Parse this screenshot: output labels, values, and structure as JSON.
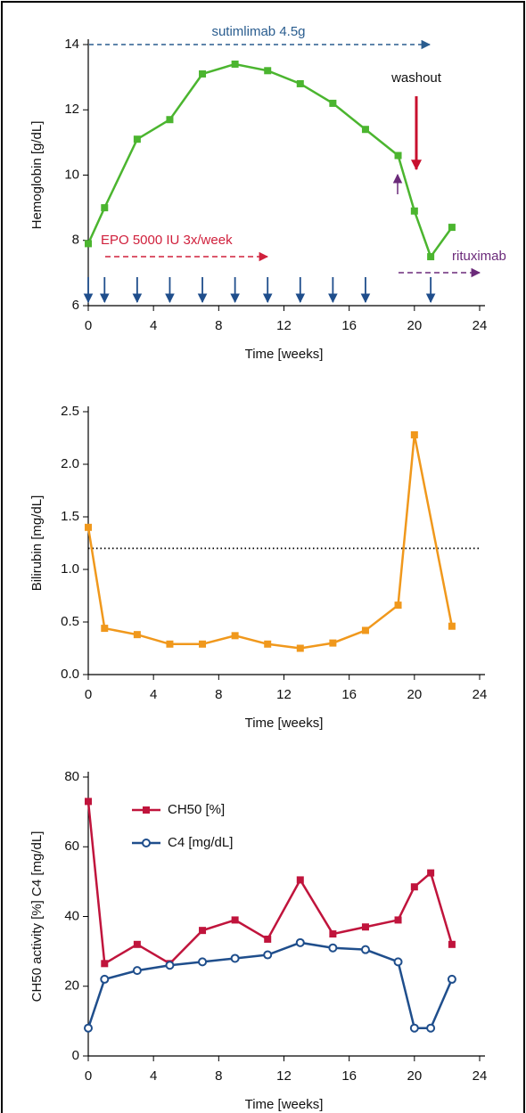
{
  "chart_data": [
    {
      "type": "line",
      "y_label": "Hemoglobin [g/dL]",
      "x_label": "Time [weeks]",
      "x": [
        0,
        1,
        3,
        5,
        7,
        9,
        11,
        13,
        15,
        17,
        19,
        20,
        21,
        22.3
      ],
      "series": [
        {
          "name": "Hemoglobin",
          "color": "#4bb52f",
          "marker": "square",
          "values": [
            7.9,
            9.0,
            11.1,
            11.7,
            13.1,
            13.4,
            13.2,
            12.8,
            12.2,
            11.4,
            10.6,
            8.9,
            7.5,
            8.4
          ]
        }
      ],
      "xlim": [
        0,
        24
      ],
      "xticks": [
        0,
        4,
        8,
        12,
        16,
        20,
        24
      ],
      "ylim": [
        6,
        14
      ],
      "yticks": [
        6,
        8,
        10,
        12,
        14
      ],
      "annotations": [
        "sutimlimab 4.5g",
        "washout",
        "EPO 5000 IU 3x/week",
        "rituximab"
      ],
      "dose_weeks": [
        0,
        1,
        3,
        5,
        7,
        9,
        11,
        13,
        15,
        17,
        21
      ]
    },
    {
      "type": "line",
      "y_label": "Bilirubin [mg/dL]",
      "x_label": "Time [weeks]",
      "x": [
        0,
        1,
        3,
        5,
        7,
        9,
        11,
        13,
        15,
        17,
        19,
        20,
        22.3
      ],
      "series": [
        {
          "name": "Bilirubin",
          "color": "#f0981c",
          "marker": "square",
          "values": [
            1.4,
            0.44,
            0.38,
            0.29,
            0.29,
            0.37,
            0.29,
            0.25,
            0.3,
            0.42,
            0.66,
            2.28,
            0.46
          ]
        }
      ],
      "xlim": [
        0,
        24
      ],
      "xticks": [
        0,
        4,
        8,
        12,
        16,
        20,
        24
      ],
      "ylim": [
        0,
        2.5
      ],
      "yticks": [
        {
          "value": 0,
          "label": "0.0"
        },
        0.5,
        {
          "value": 1,
          "label": "1.0"
        },
        1.5,
        {
          "value": 2,
          "label": "2.0"
        },
        2.5
      ],
      "hline": 1.2
    },
    {
      "type": "line",
      "y_label": "CH50 activity [%] C4 [mg/dL]",
      "x_label": "Time [weeks]",
      "x": [
        0,
        1,
        3,
        5,
        7,
        9,
        11,
        13,
        15,
        17,
        19,
        20,
        21,
        22.3
      ],
      "series": [
        {
          "name": "CH50 [%]",
          "color": "#c0143c",
          "marker": "square",
          "values": [
            73,
            26.5,
            32,
            26.5,
            36,
            39,
            33.5,
            50.5,
            35,
            37,
            39,
            48.5,
            52.5,
            32
          ]
        },
        {
          "name": "C4 [mg/dL]",
          "color": "#1f4e8c",
          "marker": "circle-open",
          "values": [
            8,
            22,
            24.5,
            26,
            27,
            28,
            29,
            32.5,
            31,
            30.5,
            27,
            8,
            8,
            22
          ]
        }
      ],
      "xlim": [
        0,
        24
      ],
      "xticks": [
        0,
        4,
        8,
        12,
        16,
        20,
        24
      ],
      "ylim": [
        0,
        80
      ],
      "yticks": [
        0,
        20,
        40,
        60,
        80
      ],
      "legend": "upper left"
    }
  ]
}
